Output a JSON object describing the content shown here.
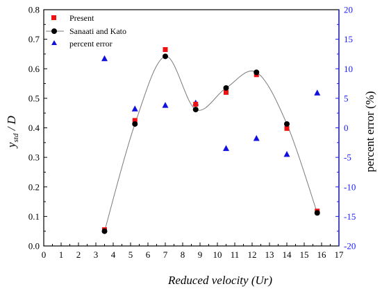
{
  "chart_data": {
    "type": "scatter",
    "title": "",
    "xlabel": "Reduced velocity (Ur)",
    "ylabel_left_main": "y",
    "ylabel_left_sub": "std",
    "ylabel_left_rest": " / D",
    "ylabel_right": "percent error (%)",
    "xlim": [
      0,
      17
    ],
    "ylim_left": [
      0.0,
      0.8
    ],
    "ylim_right": [
      -20,
      20
    ],
    "x_ticks": [
      "0",
      "1",
      "2",
      "3",
      "4",
      "5",
      "6",
      "7",
      "8",
      "9",
      "10",
      "11",
      "12",
      "13",
      "14",
      "15",
      "16",
      "17"
    ],
    "y_left_ticks": [
      "0.0",
      "0.1",
      "0.2",
      "0.3",
      "0.4",
      "0.5",
      "0.6",
      "0.7",
      "0.8"
    ],
    "y_right_ticks": [
      "-20",
      "-15",
      "-10",
      "-5",
      "0",
      "5",
      "10",
      "15",
      "20"
    ],
    "legend_position": "top-left",
    "colors": {
      "present": "#ee1111",
      "sanaati": "#000000",
      "error": "#1111dd",
      "right_axis": "#1a1aff",
      "curve": "#7a7a7a"
    },
    "series": [
      {
        "name": "Present",
        "axis": "left",
        "marker": "square",
        "x": [
          3.5,
          5.25,
          7.0,
          8.75,
          10.5,
          12.25,
          14.0,
          15.75
        ],
        "y": [
          0.055,
          0.425,
          0.665,
          0.48,
          0.52,
          0.58,
          0.398,
          0.118
        ]
      },
      {
        "name": "Sanaati and Kato",
        "axis": "left",
        "marker": "circle-line",
        "x": [
          3.5,
          5.25,
          7.0,
          8.75,
          10.5,
          12.25,
          14.0,
          15.75
        ],
        "y": [
          0.05,
          0.413,
          0.642,
          0.462,
          0.535,
          0.588,
          0.413,
          0.112
        ]
      },
      {
        "name": "percent error",
        "axis": "right",
        "marker": "triangle",
        "x": [
          3.5,
          5.25,
          7.0,
          8.75,
          10.5,
          12.25,
          14.0,
          15.75
        ],
        "y": [
          11.7,
          3.2,
          3.8,
          4.2,
          -3.5,
          -1.8,
          -4.5,
          5.9
        ]
      }
    ]
  }
}
